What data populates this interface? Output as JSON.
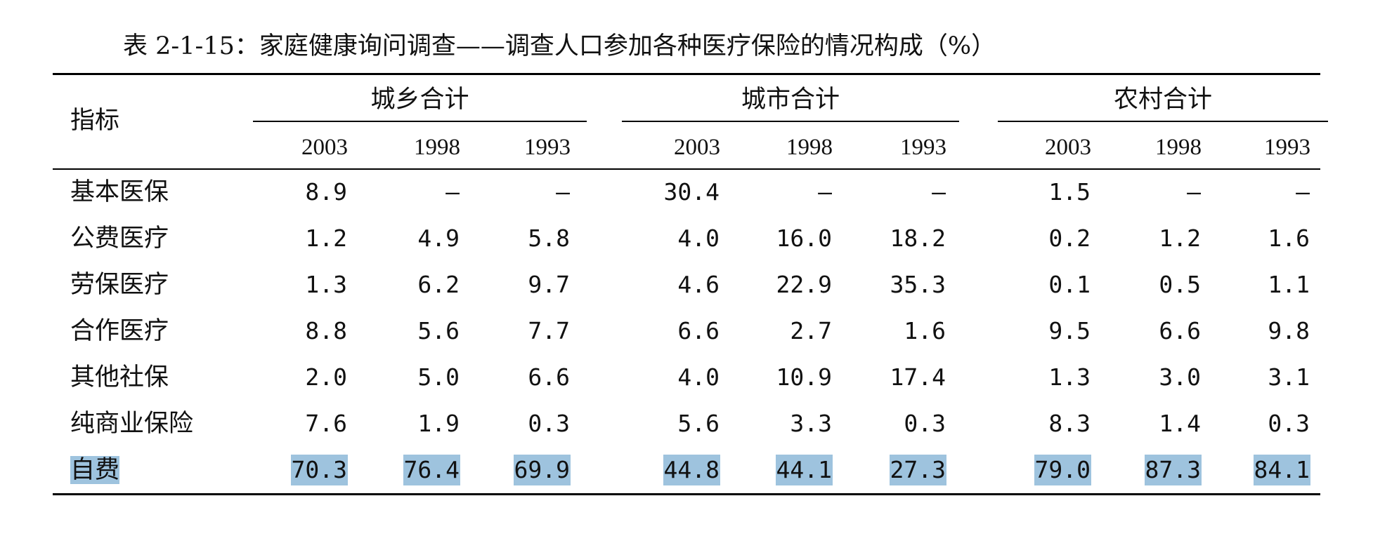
{
  "title": "表 2-1-15：家庭健康询问调查——调查人口参加各种医疗保险的情况构成（%）",
  "header": {
    "row_label": "指标",
    "groups": [
      "城乡合计",
      "城市合计",
      "农村合计"
    ],
    "years": [
      "2003",
      "1998",
      "1993"
    ]
  },
  "rows": [
    {
      "label": "基本医保",
      "values": [
        "8.9",
        "—",
        "—",
        "30.4",
        "—",
        "—",
        "1.5",
        "—",
        "—"
      ]
    },
    {
      "label": "公费医疗",
      "values": [
        "1.2",
        "4.9",
        "5.8",
        "4.0",
        "16.0",
        "18.2",
        "0.2",
        "1.2",
        "1.6"
      ]
    },
    {
      "label": "劳保医疗",
      "values": [
        "1.3",
        "6.2",
        "9.7",
        "4.6",
        "22.9",
        "35.3",
        "0.1",
        "0.5",
        "1.1"
      ]
    },
    {
      "label": "合作医疗",
      "values": [
        "8.8",
        "5.6",
        "7.7",
        "6.6",
        "2.7",
        "1.6",
        "9.5",
        "6.6",
        "9.8"
      ]
    },
    {
      "label": "其他社保",
      "values": [
        "2.0",
        "5.0",
        "6.6",
        "4.0",
        "10.9",
        "17.4",
        "1.3",
        "3.0",
        "3.1"
      ]
    },
    {
      "label": "纯商业保险",
      "values": [
        "7.6",
        "1.9",
        "0.3",
        "5.6",
        "3.3",
        "0.3",
        "8.3",
        "1.4",
        "0.3"
      ]
    },
    {
      "label": "自费",
      "values": [
        "70.3",
        "76.4",
        "69.9",
        "44.8",
        "44.1",
        "27.3",
        "79.0",
        "87.3",
        "84.1"
      ],
      "highlighted": true
    }
  ],
  "colors": {
    "highlight": "#9ec3de"
  }
}
